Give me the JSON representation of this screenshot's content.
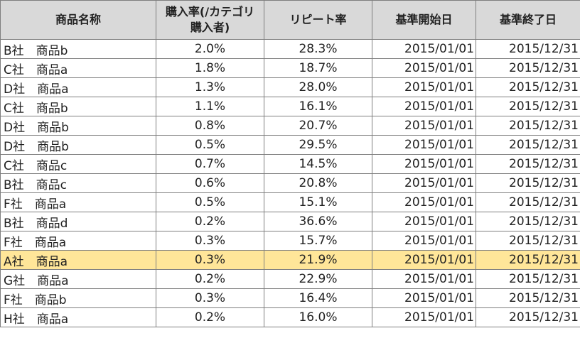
{
  "headers": {
    "product_name": "商品名称",
    "purchase_rate_line1": "購入率(/カテゴリ",
    "purchase_rate_line2": "購入者)",
    "repeat_rate": "リピート率",
    "start_date": "基準開始日",
    "end_date": "基準終了日"
  },
  "highlight_color": "#ffe699",
  "rows": [
    {
      "name": "B社　商品b",
      "purchase_rate": "2.0%",
      "repeat_rate": "28.3%",
      "start": "2015/01/01",
      "end": "2015/12/31"
    },
    {
      "name": "C社　商品a",
      "purchase_rate": "1.8%",
      "repeat_rate": "18.7%",
      "start": "2015/01/01",
      "end": "2015/12/31"
    },
    {
      "name": "D社　商品a",
      "purchase_rate": "1.3%",
      "repeat_rate": "28.0%",
      "start": "2015/01/01",
      "end": "2015/12/31"
    },
    {
      "name": "C社　商品b",
      "purchase_rate": "1.1%",
      "repeat_rate": "16.1%",
      "start": "2015/01/01",
      "end": "2015/12/31"
    },
    {
      "name": "D社　商品b",
      "purchase_rate": "0.8%",
      "repeat_rate": "20.7%",
      "start": "2015/01/01",
      "end": "2015/12/31"
    },
    {
      "name": "D社　商品b",
      "purchase_rate": "0.5%",
      "repeat_rate": "29.5%",
      "start": "2015/01/01",
      "end": "2015/12/31"
    },
    {
      "name": "C社　商品c",
      "purchase_rate": "0.7%",
      "repeat_rate": "14.5%",
      "start": "2015/01/01",
      "end": "2015/12/31"
    },
    {
      "name": "B社　商品c",
      "purchase_rate": "0.6%",
      "repeat_rate": "20.8%",
      "start": "2015/01/01",
      "end": "2015/12/31"
    },
    {
      "name": "F社　商品a",
      "purchase_rate": "0.5%",
      "repeat_rate": "15.1%",
      "start": "2015/01/01",
      "end": "2015/12/31"
    },
    {
      "name": "B社　商品d",
      "purchase_rate": "0.2%",
      "repeat_rate": "36.6%",
      "start": "2015/01/01",
      "end": "2015/12/31"
    },
    {
      "name": "F社　商品a",
      "purchase_rate": "0.3%",
      "repeat_rate": "15.7%",
      "start": "2015/01/01",
      "end": "2015/12/31"
    },
    {
      "name": "A社　商品a",
      "purchase_rate": "0.3%",
      "repeat_rate": "21.9%",
      "start": "2015/01/01",
      "end": "2015/12/31",
      "highlighted": true
    },
    {
      "name": "G社　商品a",
      "purchase_rate": "0.2%",
      "repeat_rate": "22.9%",
      "start": "2015/01/01",
      "end": "2015/12/31"
    },
    {
      "name": "F社　商品b",
      "purchase_rate": "0.3%",
      "repeat_rate": "16.4%",
      "start": "2015/01/01",
      "end": "2015/12/31"
    },
    {
      "name": "H社　商品a",
      "purchase_rate": "0.2%",
      "repeat_rate": "16.0%",
      "start": "2015/01/01",
      "end": "2015/12/31"
    }
  ]
}
